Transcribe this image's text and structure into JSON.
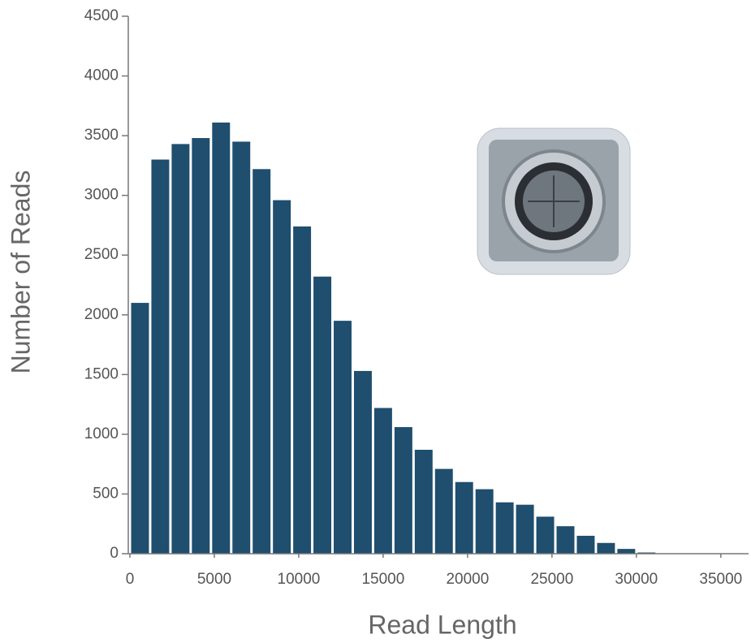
{
  "chart_data": {
    "type": "histogram",
    "x_label": "Read Length",
    "y_label": "Number of Reads",
    "bins": [
      0,
      1200,
      2400,
      3600,
      4800,
      6000,
      7200,
      8400,
      9600,
      10800,
      12000,
      13200,
      14400,
      15600,
      16800,
      18000,
      19200,
      20400,
      21600,
      22800,
      24000,
      25200,
      26400,
      27600,
      28800,
      30000,
      31200
    ],
    "values": [
      2100,
      3300,
      3430,
      3480,
      3610,
      3450,
      3220,
      2960,
      2740,
      2320,
      1950,
      1530,
      1220,
      1060,
      870,
      710,
      600,
      540,
      430,
      410,
      310,
      230,
      150,
      90,
      40,
      10
    ],
    "color": "#1f4e6e",
    "xlim": [
      0,
      36500
    ],
    "ylim": [
      0,
      4500
    ],
    "xticks": [
      0,
      5000,
      10000,
      15000,
      20000,
      25000,
      30000,
      35000
    ],
    "yticks": [
      0,
      500,
      1000,
      1500,
      2000,
      2500,
      3000,
      3500,
      4000,
      4500
    ],
    "grid": false
  }
}
